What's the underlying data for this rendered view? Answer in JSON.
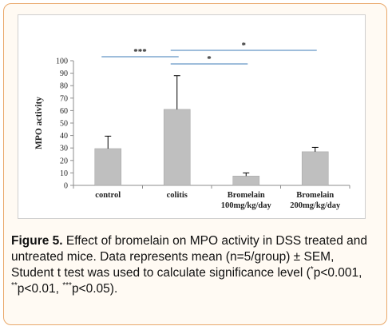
{
  "chart_data": {
    "type": "bar",
    "ylabel": "MPO activity",
    "ylim": [
      0,
      100
    ],
    "yticks": [
      0,
      10,
      20,
      30,
      40,
      50,
      60,
      70,
      80,
      90,
      100
    ],
    "categories": [
      {
        "line1": "control",
        "line2": ""
      },
      {
        "line1": "colitis",
        "line2": ""
      },
      {
        "line1": "Bromelain",
        "line2": "100mg/kg/day"
      },
      {
        "line1": "Bromelain",
        "line2": "200mg/kg/day"
      }
    ],
    "values": [
      29.5,
      61,
      7.5,
      27
    ],
    "error": [
      10,
      27,
      2.5,
      3.5
    ],
    "bar_color": "#bfbfbf",
    "significance": [
      {
        "from": 0,
        "to": 1,
        "label": "***"
      },
      {
        "from": 1,
        "to": 2,
        "label": "*"
      },
      {
        "from": 1,
        "to": 3,
        "label": "*"
      }
    ],
    "sig_line_color": "#7fa7cf",
    "grid": false
  },
  "caption": {
    "figure": "Figure 5.",
    "text1": " Effect of bromelain on MPO activity in DSS treated and untreated mice. Data represents mean (n=5/group) ± SEM, Student t test was used to calculate significance level (",
    "sup1": "*",
    "text2": "p<0.001, ",
    "sup2": "**",
    "text3": "p<0.01, ",
    "sup3": "***",
    "text4": "p<0.05)."
  }
}
